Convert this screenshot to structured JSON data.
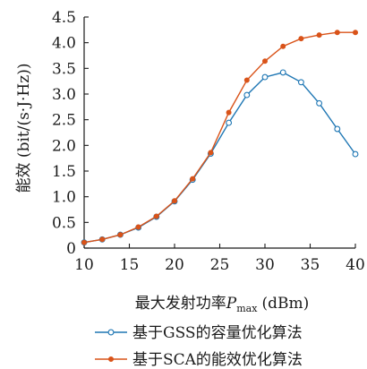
{
  "chart_data": {
    "type": "line",
    "title": "",
    "xlabel_main": "最大发射功率",
    "xlabel_symbol": "P",
    "xlabel_subscript": "max",
    "xlabel_unit": "(dBm)",
    "ylabel": "能效 (bit/(s·J·Hz))",
    "xlim": [
      10,
      40
    ],
    "ylim": [
      0,
      4.5
    ],
    "x_ticks": [
      10,
      15,
      20,
      25,
      30,
      35,
      40
    ],
    "y_ticks": [
      "0",
      "0.5",
      "1.0",
      "1.5",
      "2.0",
      "2.5",
      "3.0",
      "3.5",
      "4.0",
      "4.5"
    ],
    "grid": false,
    "legend_position": "bottom",
    "x": [
      10,
      12,
      14,
      16,
      18,
      20,
      22,
      24,
      26,
      28,
      30,
      32,
      34,
      36,
      38,
      40
    ],
    "series": [
      {
        "name": "基于GSS的容量优化算法",
        "color": "#1f77b4",
        "marker": "open-circle",
        "values": [
          0.11,
          0.17,
          0.26,
          0.4,
          0.61,
          0.91,
          1.33,
          1.84,
          2.44,
          2.98,
          3.33,
          3.42,
          3.23,
          2.82,
          2.32,
          1.83
        ]
      },
      {
        "name": "基于SCA的能效优化算法",
        "color": "#d95319",
        "marker": "filled-circle",
        "values": [
          0.11,
          0.17,
          0.26,
          0.41,
          0.62,
          0.92,
          1.35,
          1.86,
          2.64,
          3.27,
          3.64,
          3.93,
          4.08,
          4.15,
          4.2,
          4.2
        ]
      }
    ]
  }
}
